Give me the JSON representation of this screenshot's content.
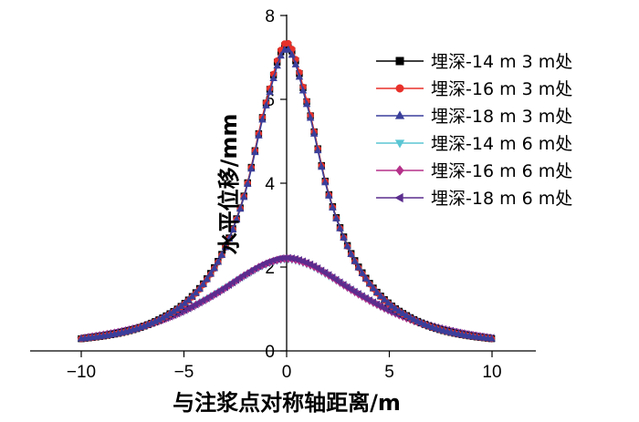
{
  "chart_data": {
    "type": "line",
    "title": "",
    "xlabel": "与注浆点对称轴距离/m",
    "ylabel": "水平位移/mm",
    "xlim": [
      -12.5,
      12.5
    ],
    "ylim": [
      0,
      8
    ],
    "xticks": [
      -10,
      -5,
      0,
      5,
      10
    ],
    "yticks": [
      0,
      2,
      4,
      6,
      8
    ],
    "grid": false,
    "legend_position": "top-right",
    "x": [
      -10,
      -9,
      -8,
      -7,
      -6,
      -5,
      -4,
      -3,
      -2,
      -1,
      0,
      1,
      2,
      3,
      4,
      5,
      6,
      7,
      8,
      9,
      10
    ],
    "series": [
      {
        "name": "埋深-14 m 3 m处",
        "color": "#000000",
        "marker": "square",
        "values": [
          0.29,
          0.35,
          0.44,
          0.58,
          0.8,
          1.12,
          1.64,
          2.47,
          3.83,
          5.91,
          7.3,
          5.91,
          3.83,
          2.47,
          1.64,
          1.12,
          0.8,
          0.58,
          0.44,
          0.35,
          0.29
        ]
      },
      {
        "name": "埋深-16 m 3 m处",
        "color": "#e8312a",
        "marker": "circle",
        "values": [
          0.29,
          0.35,
          0.44,
          0.58,
          0.79,
          1.11,
          1.62,
          2.45,
          3.82,
          5.92,
          7.35,
          5.92,
          3.82,
          2.45,
          1.62,
          1.11,
          0.79,
          0.58,
          0.44,
          0.35,
          0.29
        ]
      },
      {
        "name": "埋深-18 m 3 m处",
        "color": "#3a3f9b",
        "marker": "triangle-up",
        "values": [
          0.29,
          0.35,
          0.44,
          0.58,
          0.8,
          1.12,
          1.63,
          2.45,
          3.8,
          5.85,
          7.2,
          5.85,
          3.8,
          2.45,
          1.63,
          1.12,
          0.8,
          0.58,
          0.44,
          0.35,
          0.29
        ]
      },
      {
        "name": "埋深-14 m 6 m处",
        "color": "#5bc6d4",
        "marker": "triangle-down",
        "values": [
          0.3,
          0.38,
          0.47,
          0.59,
          0.75,
          0.95,
          1.2,
          1.49,
          1.8,
          2.06,
          2.18,
          2.06,
          1.8,
          1.49,
          1.2,
          0.95,
          0.75,
          0.59,
          0.47,
          0.38,
          0.3
        ]
      },
      {
        "name": "埋深-16 m 6 m处",
        "color": "#b5318a",
        "marker": "diamond",
        "values": [
          0.3,
          0.38,
          0.47,
          0.59,
          0.75,
          0.96,
          1.21,
          1.5,
          1.82,
          2.08,
          2.2,
          2.08,
          1.82,
          1.5,
          1.21,
          0.96,
          0.75,
          0.59,
          0.47,
          0.38,
          0.3
        ]
      },
      {
        "name": "埋深-18 m 6 m处",
        "color": "#5b2d8e",
        "marker": "triangle-left",
        "values": [
          0.31,
          0.38,
          0.48,
          0.6,
          0.76,
          0.96,
          1.22,
          1.51,
          1.83,
          2.1,
          2.22,
          2.1,
          1.83,
          1.51,
          1.22,
          0.96,
          0.76,
          0.6,
          0.48,
          0.38,
          0.31
        ]
      }
    ]
  }
}
